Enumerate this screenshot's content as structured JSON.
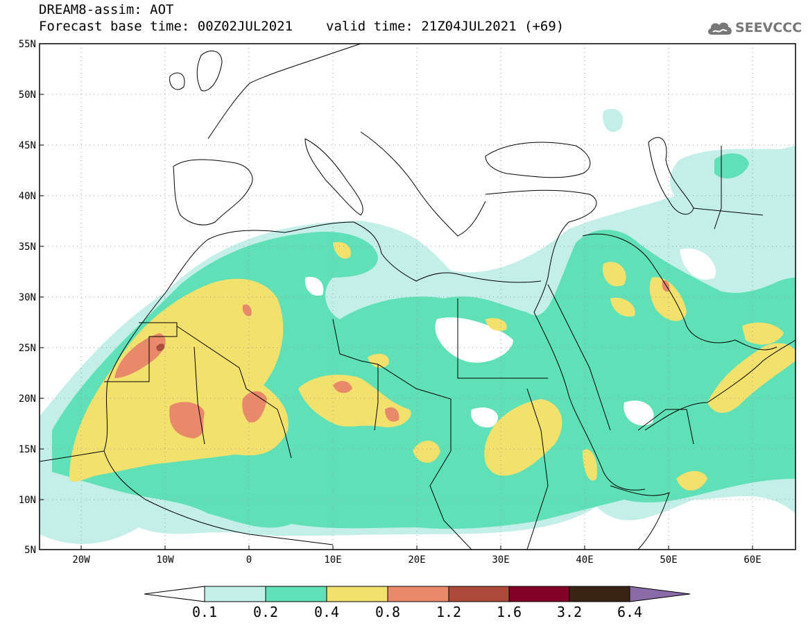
{
  "header": {
    "title": "DREAM8-assim: AOT",
    "base_time_text": "Forecast base time: 00Z02JUL2021",
    "valid_time_text": "valid time: 21Z04JUL2021 (+69)"
  },
  "logo": {
    "text": "SEEVCCC",
    "icon": "cloud-icon"
  },
  "map": {
    "variable": "AOT",
    "lon_range": [
      -25,
      65
    ],
    "lat_range": [
      5,
      55
    ],
    "lon_ticks": [
      "20W",
      "10W",
      "0",
      "10E",
      "20E",
      "30E",
      "40E",
      "50E",
      "60E"
    ],
    "lat_ticks": [
      "55N",
      "50N",
      "45N",
      "40N",
      "35N",
      "30N",
      "25N",
      "20N",
      "15N",
      "10N",
      "5N"
    ],
    "grid": "dotted"
  },
  "colorbar": {
    "labels": [
      "0.1",
      "0.2",
      "0.4",
      "0.8",
      "1.2",
      "1.6",
      "3.2",
      "6.4"
    ],
    "colors": [
      "#c4efe9",
      "#5fe0b6",
      "#f3e16d",
      "#e8896a",
      "#ad4a3c",
      "#800026",
      "#3b2413",
      "#8b6aa8"
    ]
  }
}
